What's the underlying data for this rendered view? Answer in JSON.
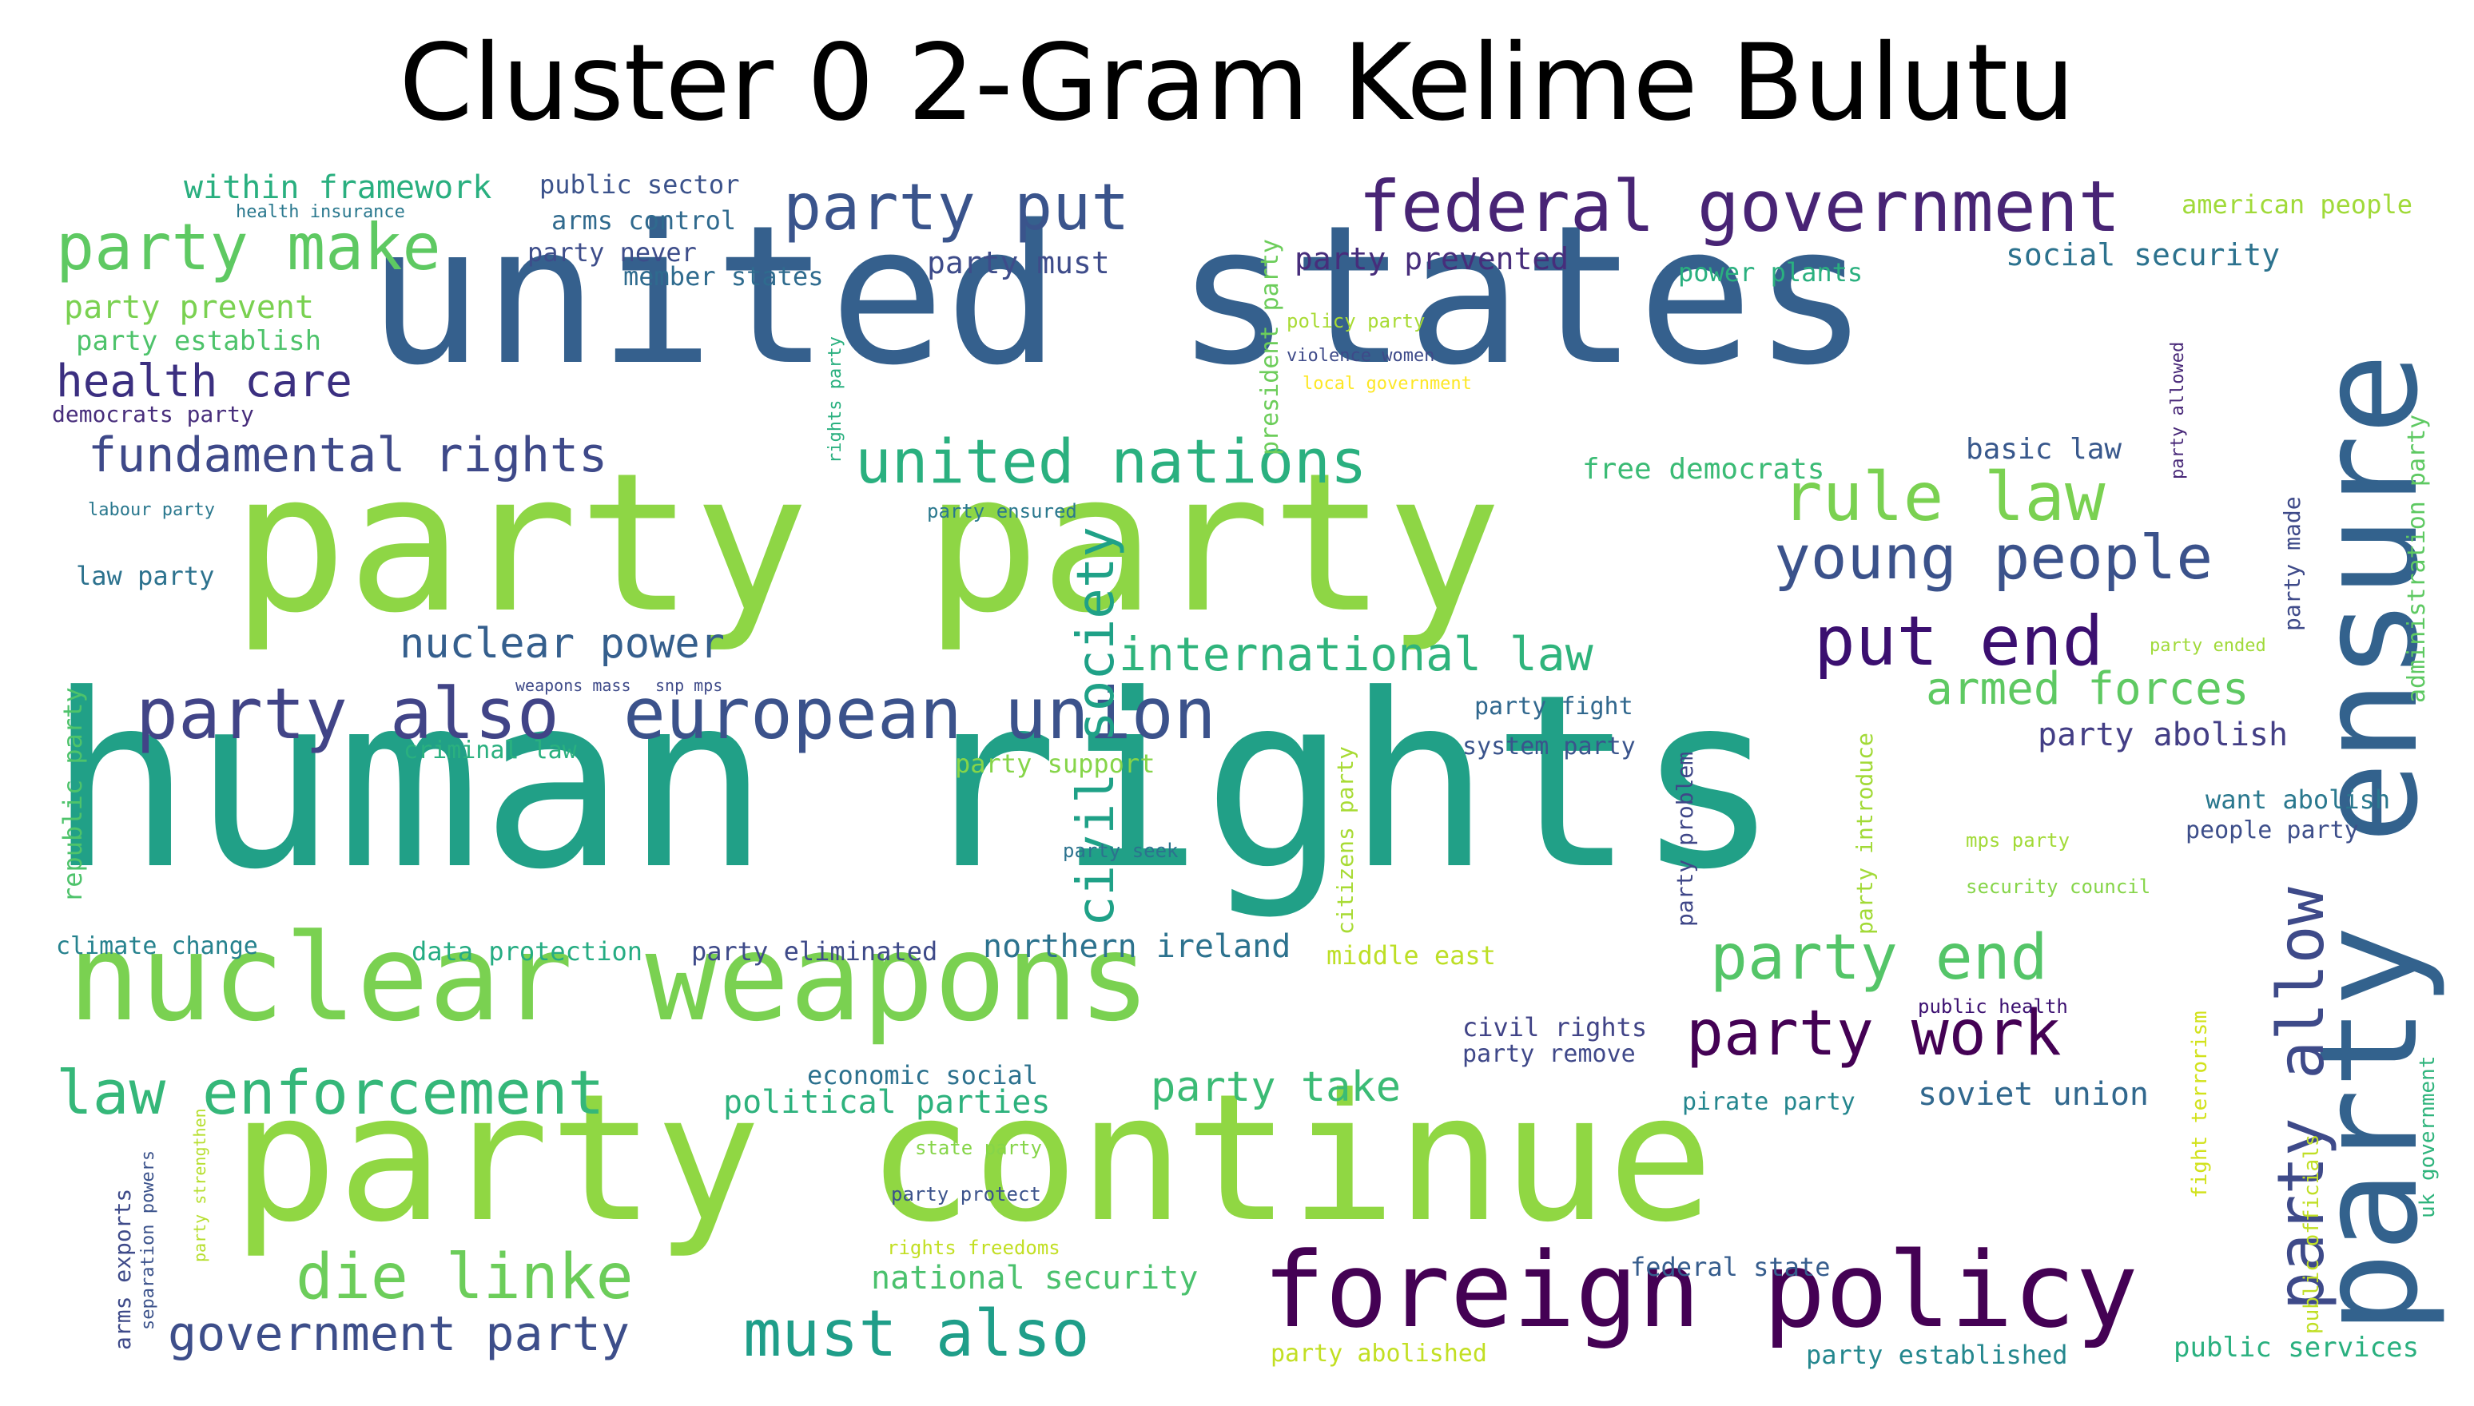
{
  "title": "Cluster 0 2-Gram Kelime Bulutu",
  "colors": {
    "background": "#ffffff",
    "title": "#000000"
  },
  "words": [
    {
      "text": "human rights",
      "color": "#21a087"
    },
    {
      "text": "party party",
      "color": "#8ed645"
    },
    {
      "text": "united states",
      "color": "#35608d"
    },
    {
      "text": "party continue",
      "color": "#90d743"
    },
    {
      "text": "nuclear weapons",
      "color": "#7ad151"
    },
    {
      "text": "party ensure",
      "color": "#33628d"
    },
    {
      "text": "foreign policy",
      "color": "#440154"
    },
    {
      "text": "federal government",
      "color": "#482475"
    },
    {
      "text": "party also",
      "color": "#414487"
    },
    {
      "text": "european union",
      "color": "#3b528b"
    },
    {
      "text": "party allow",
      "color": "#3e4a89"
    },
    {
      "text": "party put",
      "color": "#3a548c"
    },
    {
      "text": "party make",
      "color": "#5ec962"
    },
    {
      "text": "rule law",
      "color": "#7ad151"
    },
    {
      "text": "young people",
      "color": "#3b528b"
    },
    {
      "text": "put end",
      "color": "#3b0f70"
    },
    {
      "text": "united nations",
      "color": "#2ab07f"
    },
    {
      "text": "law enforcement",
      "color": "#35b779"
    },
    {
      "text": "party work",
      "color": "#440154"
    },
    {
      "text": "party end",
      "color": "#54c568"
    },
    {
      "text": "die linke",
      "color": "#6ccd5a"
    },
    {
      "text": "must also",
      "color": "#1f9e89"
    },
    {
      "text": "fundamental rights",
      "color": "#3e4989"
    },
    {
      "text": "civil society",
      "color": "#1fa187"
    },
    {
      "text": "government party",
      "color": "#3d4e8a"
    },
    {
      "text": "health care",
      "color": "#3b2f80"
    },
    {
      "text": "international law",
      "color": "#2fb47c"
    },
    {
      "text": "nuclear power",
      "color": "#355f8d"
    },
    {
      "text": "armed forces",
      "color": "#5ec962"
    },
    {
      "text": "party take",
      "color": "#3bbb75"
    },
    {
      "text": "northern ireland",
      "color": "#2c728e"
    },
    {
      "text": "party abolish",
      "color": "#433e85"
    },
    {
      "text": "soviet union",
      "color": "#31688e"
    },
    {
      "text": "political parties",
      "color": "#2db27d"
    },
    {
      "text": "national security",
      "color": "#4ac16d"
    },
    {
      "text": "social security",
      "color": "#2c728e"
    },
    {
      "text": "party prevented",
      "color": "#472d7b"
    },
    {
      "text": "within framework",
      "color": "#29af7f"
    },
    {
      "text": "party prevent",
      "color": "#7ad151"
    },
    {
      "text": "party establish",
      "color": "#4ec36b"
    },
    {
      "text": "party must",
      "color": "#3e4c8a"
    },
    {
      "text": "party never",
      "color": "#3d4d8a"
    },
    {
      "text": "public sector",
      "color": "#3b528b"
    },
    {
      "text": "arms control",
      "color": "#306a8e"
    },
    {
      "text": "member states",
      "color": "#2f6b8e"
    },
    {
      "text": "american people",
      "color": "#a0da39"
    },
    {
      "text": "power plants",
      "color": "#2ab07f"
    },
    {
      "text": "free democrats",
      "color": "#3bbb75"
    },
    {
      "text": "basic law",
      "color": "#38588c"
    },
    {
      "text": "democrats party",
      "color": "#472d7b"
    },
    {
      "text": "climate change",
      "color": "#26828e"
    },
    {
      "text": "data protection",
      "color": "#25ac82"
    },
    {
      "text": "party eliminated",
      "color": "#3e4a89"
    },
    {
      "text": "middle east",
      "color": "#bddf26"
    },
    {
      "text": "civil rights",
      "color": "#414487"
    },
    {
      "text": "party remove",
      "color": "#3f4889"
    },
    {
      "text": "economic social",
      "color": "#2c718e"
    },
    {
      "text": "pirate party",
      "color": "#24868e"
    },
    {
      "text": "federal state",
      "color": "#365d8d"
    },
    {
      "text": "party abolished",
      "color": "#c2df23"
    },
    {
      "text": "party established",
      "color": "#24878e"
    },
    {
      "text": "public services",
      "color": "#2ab07f"
    },
    {
      "text": "party fight",
      "color": "#31688e"
    },
    {
      "text": "system party",
      "color": "#3a548c"
    },
    {
      "text": "party support",
      "color": "#86d549"
    },
    {
      "text": "criminal law",
      "color": "#2ab07f"
    },
    {
      "text": "republic party",
      "color": "#4ec36b"
    },
    {
      "text": "want abolish",
      "color": "#2a788e"
    },
    {
      "text": "people party",
      "color": "#3d4e8a"
    },
    {
      "text": "law party",
      "color": "#2c728e"
    },
    {
      "text": "labour party",
      "color": "#2a788e"
    },
    {
      "text": "health insurance",
      "color": "#2a788e"
    },
    {
      "text": "administration party",
      "color": "#5ec962"
    },
    {
      "text": "party made",
      "color": "#3e4a89"
    },
    {
      "text": "public officials",
      "color": "#c0df25"
    },
    {
      "text": "fight terrorism",
      "color": "#d2e21b"
    },
    {
      "text": "uk government",
      "color": "#2fb47c"
    },
    {
      "text": "arms exports",
      "color": "#3e4a89"
    },
    {
      "text": "separation powers",
      "color": "#3b528b"
    },
    {
      "text": "party strengthen",
      "color": "#b5de2b"
    },
    {
      "text": "president party",
      "color": "#6ccd5a"
    },
    {
      "text": "rights party",
      "color": "#2ab07f"
    },
    {
      "text": "citizens party",
      "color": "#a8db34"
    },
    {
      "text": "party problem",
      "color": "#3f4788"
    },
    {
      "text": "party introduce",
      "color": "#a2da37"
    },
    {
      "text": "party allowed",
      "color": "#482878"
    },
    {
      "text": "policy party",
      "color": "#a8db34"
    },
    {
      "text": "violence women",
      "color": "#3e4a89"
    },
    {
      "text": "local government",
      "color": "#fde725"
    },
    {
      "text": "party ensured",
      "color": "#2a788e"
    },
    {
      "text": "weapons mass",
      "color": "#3e4a89"
    },
    {
      "text": "snp mps",
      "color": "#3e4a89"
    },
    {
      "text": "party seek",
      "color": "#2c728e"
    },
    {
      "text": "party ended",
      "color": "#a0da39"
    },
    {
      "text": "mps party",
      "color": "#a2da37"
    },
    {
      "text": "security council",
      "color": "#86d549"
    },
    {
      "text": "public health",
      "color": "#3b0f70"
    },
    {
      "text": "state party",
      "color": "#86d549"
    },
    {
      "text": "party protect",
      "color": "#3b528b"
    },
    {
      "text": "rights freedoms",
      "color": "#c2df23"
    }
  ]
}
